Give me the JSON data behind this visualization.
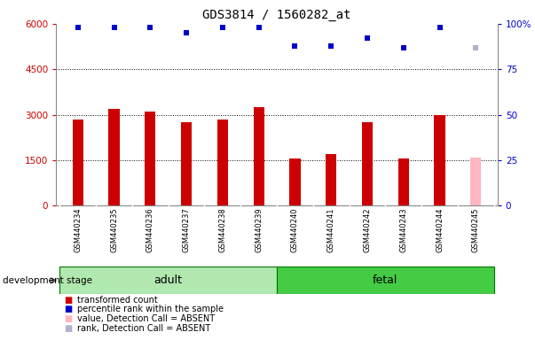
{
  "title": "GDS3814 / 1560282_at",
  "samples": [
    "GSM440234",
    "GSM440235",
    "GSM440236",
    "GSM440237",
    "GSM440238",
    "GSM440239",
    "GSM440240",
    "GSM440241",
    "GSM440242",
    "GSM440243",
    "GSM440244",
    "GSM440245"
  ],
  "bar_values": [
    2850,
    3200,
    3100,
    2750,
    2850,
    3250,
    1550,
    1700,
    2750,
    1550,
    2980,
    1580
  ],
  "bar_colors": [
    "#cc0000",
    "#cc0000",
    "#cc0000",
    "#cc0000",
    "#cc0000",
    "#cc0000",
    "#cc0000",
    "#cc0000",
    "#cc0000",
    "#cc0000",
    "#cc0000",
    "#ffb6c1"
  ],
  "rank_values": [
    98,
    98,
    98,
    95,
    98,
    98,
    88,
    88,
    92,
    87,
    98,
    87
  ],
  "rank_absent": [
    false,
    false,
    false,
    false,
    false,
    false,
    false,
    false,
    false,
    false,
    false,
    true
  ],
  "rank_color_present": "#0000cc",
  "rank_color_absent": "#b0b0d0",
  "ylim_left": [
    0,
    6000
  ],
  "ylim_right": [
    0,
    100
  ],
  "yticks_left": [
    0,
    1500,
    3000,
    4500,
    6000
  ],
  "yticks_right": [
    0,
    25,
    50,
    75,
    100
  ],
  "adult_indices": [
    0,
    1,
    2,
    3,
    4,
    5
  ],
  "fetal_indices": [
    6,
    7,
    8,
    9,
    10,
    11
  ],
  "adult_color": "#b0e8b0",
  "fetal_color": "#44cc44",
  "label_bg_color": "#c8c8c8",
  "plot_bg_color": "#ffffff",
  "groups": [
    {
      "label": "adult",
      "start": 0,
      "end": 5
    },
    {
      "label": "fetal",
      "start": 6,
      "end": 11
    }
  ],
  "development_label": "development stage",
  "legend_items": [
    {
      "label": "transformed count",
      "color": "#cc0000"
    },
    {
      "label": "percentile rank within the sample",
      "color": "#0000cc"
    },
    {
      "label": "value, Detection Call = ABSENT",
      "color": "#ffb6c1"
    },
    {
      "label": "rank, Detection Call = ABSENT",
      "color": "#b0b0d0"
    }
  ],
  "bg_color": "#ffffff",
  "grid_color": "#000000",
  "tick_color_left": "#cc0000",
  "tick_color_right": "#0000cc",
  "bar_width": 0.3
}
